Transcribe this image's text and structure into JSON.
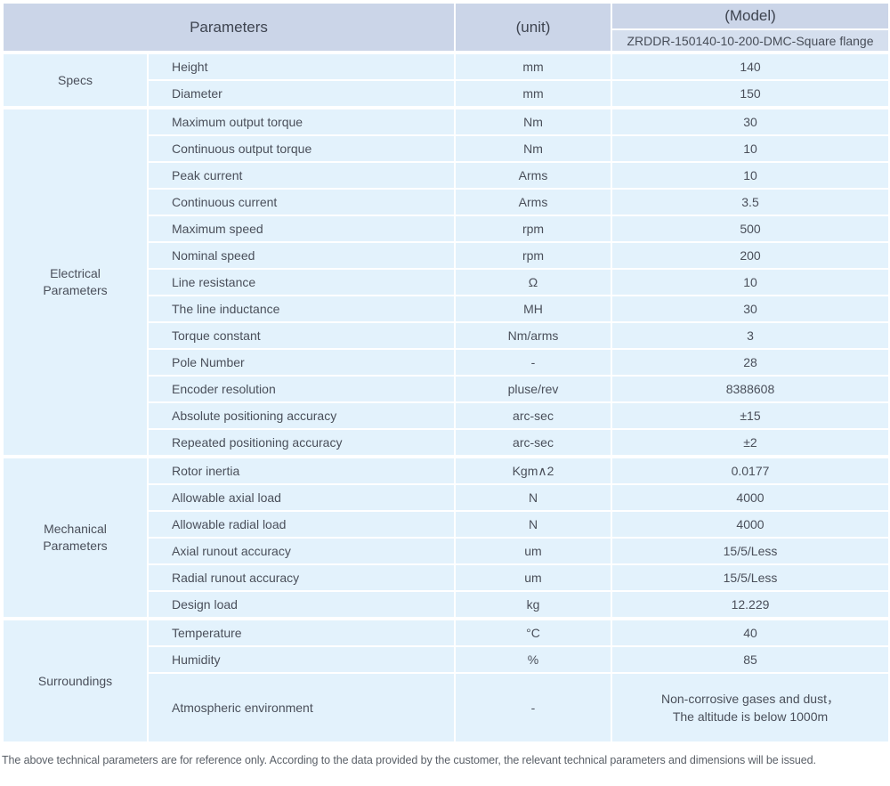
{
  "header": {
    "parameters": "Parameters",
    "unit": "(unit)",
    "model": "(Model)",
    "model_name": "ZRDDR-150140-10-200-DMC-Square flange"
  },
  "table": {
    "groups": [
      {
        "label": "Specs",
        "rows": [
          {
            "parameter": "Height",
            "unit": "mm",
            "value": "140"
          },
          {
            "parameter": "Diameter",
            "unit": "mm",
            "value": "150"
          }
        ]
      },
      {
        "label": "Electrical\nParameters",
        "rows": [
          {
            "parameter": "Maximum output torque",
            "unit": "Nm",
            "value": "30"
          },
          {
            "parameter": "Continuous output torque",
            "unit": "Nm",
            "value": "10"
          },
          {
            "parameter": "Peak current",
            "unit": "Arms",
            "value": "10"
          },
          {
            "parameter": "Continuous current",
            "unit": "Arms",
            "value": "3.5"
          },
          {
            "parameter": "Maximum speed",
            "unit": "rpm",
            "value": "500"
          },
          {
            "parameter": "Nominal speed",
            "unit": "rpm",
            "value": "200"
          },
          {
            "parameter": "Line resistance",
            "unit": "Ω",
            "value": "10"
          },
          {
            "parameter": "The line inductance",
            "unit": "MH",
            "value": "30"
          },
          {
            "parameter": "Torque constant",
            "unit": "Nm/arms",
            "value": "3"
          },
          {
            "parameter": "Pole Number",
            "unit": "-",
            "value": "28"
          },
          {
            "parameter": "Encoder resolution",
            "unit": "pluse/rev",
            "value": "8388608"
          },
          {
            "parameter": "Absolute positioning accuracy",
            "unit": "arc-sec",
            "value": "±15"
          },
          {
            "parameter": "Repeated positioning accuracy",
            "unit": "arc-sec",
            "value": "±2"
          }
        ]
      },
      {
        "label": "Mechanical\nParameters",
        "rows": [
          {
            "parameter": "Rotor inertia",
            "unit": "Kgm∧2",
            "value": "0.0177"
          },
          {
            "parameter": "Allowable axial load",
            "unit": "N",
            "value": "4000"
          },
          {
            "parameter": "Allowable radial load",
            "unit": "N",
            "value": "4000"
          },
          {
            "parameter": "Axial runout accuracy",
            "unit": "um",
            "value": "15/5/Less"
          },
          {
            "parameter": "Radial runout accuracy",
            "unit": "um",
            "value": "15/5/Less"
          },
          {
            "parameter": "Design load",
            "unit": "kg",
            "value": "12.229"
          }
        ]
      },
      {
        "label": "Surroundings",
        "rows": [
          {
            "parameter": "Temperature",
            "unit": "°C",
            "value": "40"
          },
          {
            "parameter": "Humidity",
            "unit": "%",
            "value": "85"
          },
          {
            "parameter": "Atmospheric environment",
            "unit": "-",
            "value": "Non-corrosive gases and dust，\nThe altitude is below 1000m",
            "tall": true
          }
        ]
      }
    ]
  },
  "footer": {
    "note": "The above technical parameters are for reference only. According to the data provided by the customer, the relevant technical parameters and dimensions will be issued."
  },
  "colors": {
    "header_bg": "#cbd5e8",
    "model_row_bg": "#d5dfee",
    "cell_bg": "#e3f2fc",
    "divider": "#ffffff"
  }
}
